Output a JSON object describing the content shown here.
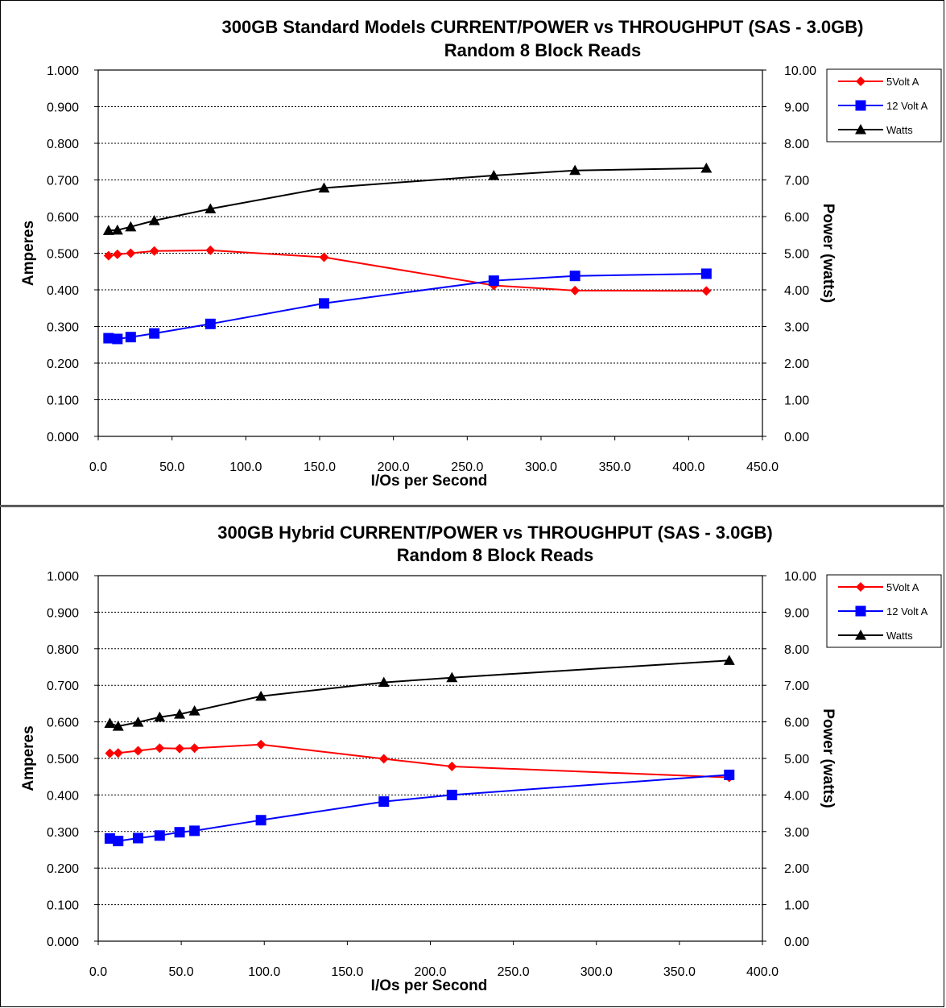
{
  "colors": {
    "volt5": "#ff0000",
    "volt12": "#0000ff",
    "watts": "#000000",
    "grid": "#000000"
  },
  "chart_data": [
    {
      "type": "line",
      "title": "300GB Standard Models CURRENT/POWER vs THROUGHPUT (SAS - 3.0GB)",
      "subtitle": "Random 8 Block Reads",
      "xlabel": "I/Os per Second",
      "ylabel": "Amperes",
      "y2label": "Power (watts)",
      "xlim": [
        0,
        450
      ],
      "ylim": [
        0,
        1.0
      ],
      "y2lim": [
        0,
        10.0
      ],
      "xticks": [
        "0.0",
        "50.0",
        "100.0",
        "150.0",
        "200.0",
        "250.0",
        "300.0",
        "350.0",
        "400.0",
        "450.0"
      ],
      "yticks": [
        "0.000",
        "0.100",
        "0.200",
        "0.300",
        "0.400",
        "0.500",
        "0.600",
        "0.700",
        "0.800",
        "0.900",
        "1.000"
      ],
      "y2ticks": [
        "0.00",
        "1.00",
        "2.00",
        "3.00",
        "4.00",
        "5.00",
        "6.00",
        "7.00",
        "8.00",
        "9.00",
        "10.00"
      ],
      "grid": true,
      "legend_position": "right",
      "series": [
        {
          "name": "5Volt A",
          "axis": "left",
          "marker": "diamond",
          "points": [
            [
              7,
              0.493
            ],
            [
              13,
              0.497
            ],
            [
              22,
              0.5
            ],
            [
              38,
              0.506
            ],
            [
              76,
              0.508
            ],
            [
              153,
              0.489
            ],
            [
              268,
              0.412
            ],
            [
              323,
              0.398
            ],
            [
              412,
              0.397
            ]
          ]
        },
        {
          "name": "12 Volt A",
          "axis": "left",
          "marker": "square",
          "points": [
            [
              7,
              0.268
            ],
            [
              13,
              0.266
            ],
            [
              22,
              0.271
            ],
            [
              38,
              0.281
            ],
            [
              76,
              0.307
            ],
            [
              153,
              0.363
            ],
            [
              268,
              0.425
            ],
            [
              323,
              0.438
            ],
            [
              412,
              0.444
            ]
          ]
        },
        {
          "name": "Watts",
          "axis": "right",
          "marker": "triangle",
          "points": [
            [
              7,
              5.62
            ],
            [
              13,
              5.63
            ],
            [
              22,
              5.72
            ],
            [
              38,
              5.89
            ],
            [
              76,
              6.21
            ],
            [
              153,
              6.78
            ],
            [
              268,
              7.12
            ],
            [
              323,
              7.26
            ],
            [
              412,
              7.32
            ]
          ]
        }
      ]
    },
    {
      "type": "line",
      "title": "300GB Hybrid CURRENT/POWER vs THROUGHPUT (SAS - 3.0GB)",
      "subtitle": "Random 8 Block Reads",
      "xlabel": "I/Os per Second",
      "ylabel": "Amperes",
      "y2label": "Power (watts)",
      "xlim": [
        0,
        400
      ],
      "ylim": [
        0,
        1.0
      ],
      "y2lim": [
        0,
        10.0
      ],
      "xticks": [
        "0.0",
        "50.0",
        "100.0",
        "150.0",
        "200.0",
        "250.0",
        "300.0",
        "350.0",
        "400.0"
      ],
      "yticks": [
        "0.000",
        "0.100",
        "0.200",
        "0.300",
        "0.400",
        "0.500",
        "0.600",
        "0.700",
        "0.800",
        "0.900",
        "1.000"
      ],
      "y2ticks": [
        "0.00",
        "1.00",
        "2.00",
        "3.00",
        "4.00",
        "5.00",
        "6.00",
        "7.00",
        "8.00",
        "9.00",
        "10.00"
      ],
      "grid": true,
      "legend_position": "right",
      "series": [
        {
          "name": "5Volt A",
          "axis": "left",
          "marker": "diamond",
          "points": [
            [
              7,
              0.514
            ],
            [
              12,
              0.515
            ],
            [
              24,
              0.521
            ],
            [
              37,
              0.528
            ],
            [
              49,
              0.527
            ],
            [
              58,
              0.528
            ],
            [
              98,
              0.538
            ],
            [
              172,
              0.499
            ],
            [
              213,
              0.478
            ],
            [
              380,
              0.448
            ]
          ]
        },
        {
          "name": "12 Volt A",
          "axis": "left",
          "marker": "square",
          "points": [
            [
              7,
              0.281
            ],
            [
              12,
              0.274
            ],
            [
              24,
              0.282
            ],
            [
              37,
              0.289
            ],
            [
              49,
              0.298
            ],
            [
              58,
              0.302
            ],
            [
              98,
              0.331
            ],
            [
              172,
              0.382
            ],
            [
              213,
              0.4
            ],
            [
              380,
              0.455
            ]
          ]
        },
        {
          "name": "Watts",
          "axis": "right",
          "marker": "triangle",
          "points": [
            [
              7,
              5.96
            ],
            [
              12,
              5.88
            ],
            [
              24,
              5.99
            ],
            [
              37,
              6.13
            ],
            [
              49,
              6.21
            ],
            [
              58,
              6.3
            ],
            [
              98,
              6.7
            ],
            [
              172,
              7.08
            ],
            [
              213,
              7.21
            ],
            [
              380,
              7.68
            ]
          ]
        }
      ]
    }
  ]
}
